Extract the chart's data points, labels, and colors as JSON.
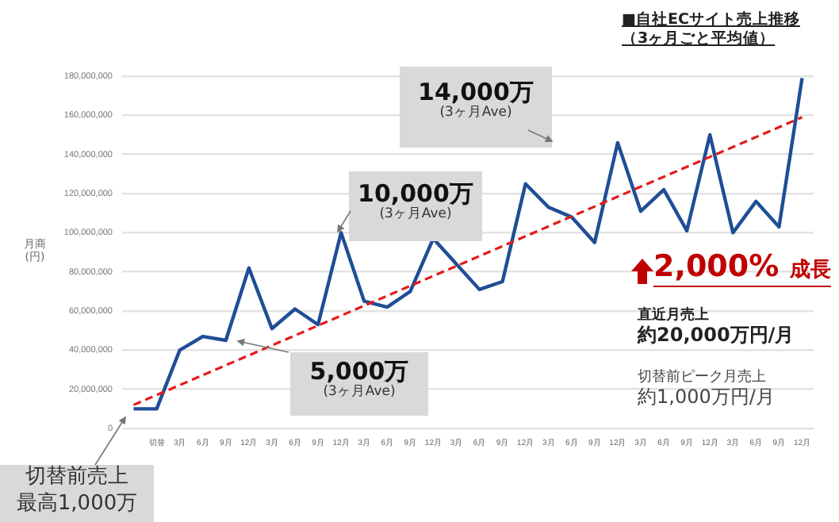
{
  "chart_data": {
    "type": "line",
    "title": "■自社ECサイト売上推移",
    "subtitle": "（3ヶ月ごと平均値）",
    "ylabel": "月商\n(円)",
    "categories": [
      null,
      "切替",
      "3月",
      "6月",
      "9月",
      "12月",
      "3月",
      "6月",
      "9月",
      "12月",
      "3月",
      "6月",
      "9月",
      "12月",
      "3月",
      "6月",
      "9月",
      "12月",
      "3月",
      "6月",
      "9月",
      "12月",
      "3月",
      "6月",
      "9月",
      "12月",
      "3月",
      "6月",
      "9月",
      "12月"
    ],
    "series": [
      {
        "color": "#1f4e96",
        "values": [
          10000000,
          10000000,
          40000000,
          47000000,
          45000000,
          82000000,
          51000000,
          61000000,
          53000000,
          100000000,
          65000000,
          62000000,
          70000000,
          97000000,
          84000000,
          71000000,
          75000000,
          125000000,
          113000000,
          108000000,
          95000000,
          146000000,
          111000000,
          122000000,
          101000000,
          150000000,
          100000000,
          116000000,
          103000000,
          179000000
        ]
      },
      {
        "type": "line",
        "color": "#e31b1b",
        "line_style": "dashed",
        "values": [
          12000000,
          null,
          null,
          null,
          null,
          null,
          null,
          null,
          null,
          null,
          null,
          null,
          null,
          null,
          null,
          null,
          null,
          null,
          null,
          null,
          null,
          null,
          null,
          null,
          null,
          null,
          null,
          null,
          null,
          159000000
        ]
      }
    ],
    "ylim": [
      0,
      180000000
    ],
    "yticks": [
      {
        "value": 0,
        "label": "0"
      },
      {
        "value": 20000000,
        "label": "20,000,000"
      },
      {
        "value": 40000000,
        "label": "40,000,000"
      },
      {
        "value": 60000000,
        "label": "60,000,000"
      },
      {
        "value": 80000000,
        "label": "80,000,000"
      },
      {
        "value": 100000000,
        "label": "100,000,000"
      },
      {
        "value": 120000000,
        "label": "120,000,000"
      },
      {
        "value": 140000000,
        "label": "140,000,000"
      },
      {
        "value": 160000000,
        "label": "160,000,000"
      },
      {
        "value": 180000000,
        "label": "180,000,000"
      }
    ],
    "grid": "y",
    "legend": false,
    "marker": "none",
    "annotations": [
      "14,000万\n(3ヶ月Ave)",
      "10,000万\n(3ヶ月Ave)",
      "5,000万\n(3ヶ月Ave)",
      "切替前売上",
      "最高1,000万",
      "2,000% 成長",
      "直近月売上",
      "約20,000万円/月",
      "切替前ピーク月売上",
      "約1,000万円/月"
    ]
  }
}
